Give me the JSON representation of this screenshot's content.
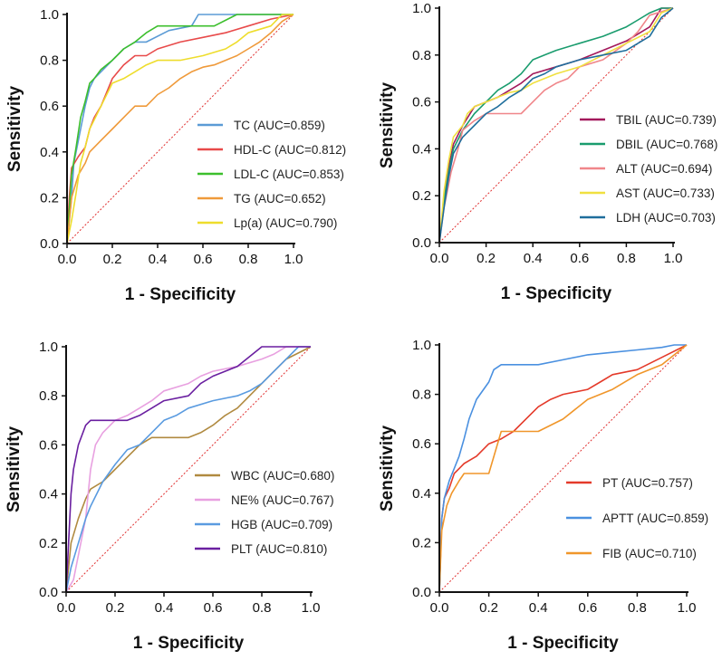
{
  "chart_data": [
    {
      "type": "line",
      "xlabel": "1 - Specificity",
      "ylabel": "Sensitivity",
      "xlim": [
        0,
        1
      ],
      "ylim": [
        0,
        1
      ],
      "xticks": [
        "0.0",
        "0.2",
        "0.4",
        "0.6",
        "0.8",
        "1.0"
      ],
      "yticks": [
        "0.0",
        "0.2",
        "0.4",
        "0.6",
        "0.8",
        "1.0"
      ],
      "reference_line": "diagonal",
      "legend_position": "bottom-right",
      "series": [
        {
          "name": "TC",
          "legend": "TC (AUC=0.859)",
          "color": "#5b9bd5",
          "x": [
            0,
            0.01,
            0.02,
            0.03,
            0.05,
            0.08,
            0.1,
            0.12,
            0.15,
            0.2,
            0.25,
            0.3,
            0.35,
            0.45,
            0.55,
            0.58,
            0.7,
            0.8,
            1.0
          ],
          "y": [
            0,
            0.1,
            0.2,
            0.35,
            0.45,
            0.6,
            0.68,
            0.72,
            0.75,
            0.8,
            0.85,
            0.88,
            0.88,
            0.93,
            0.95,
            1.0,
            1.0,
            1.0,
            1.0
          ]
        },
        {
          "name": "HDL-C",
          "legend": "HDL-C (AUC=0.812)",
          "color": "#e84a4a",
          "x": [
            0,
            0.01,
            0.02,
            0.05,
            0.08,
            0.1,
            0.12,
            0.15,
            0.2,
            0.25,
            0.3,
            0.35,
            0.4,
            0.5,
            0.6,
            0.7,
            0.8,
            0.9,
            1.0
          ],
          "y": [
            0,
            0.2,
            0.33,
            0.38,
            0.42,
            0.5,
            0.55,
            0.6,
            0.72,
            0.78,
            0.82,
            0.82,
            0.85,
            0.88,
            0.9,
            0.92,
            0.95,
            0.98,
            1.0
          ]
        },
        {
          "name": "LDL-C",
          "legend": "LDL-C (AUC=0.853)",
          "color": "#3cbf2c",
          "x": [
            0,
            0.01,
            0.02,
            0.04,
            0.06,
            0.08,
            0.1,
            0.12,
            0.15,
            0.2,
            0.25,
            0.3,
            0.35,
            0.4,
            0.5,
            0.65,
            0.75,
            1.0
          ],
          "y": [
            0,
            0.15,
            0.3,
            0.42,
            0.55,
            0.62,
            0.7,
            0.72,
            0.76,
            0.8,
            0.85,
            0.88,
            0.92,
            0.95,
            0.95,
            0.95,
            1.0,
            1.0
          ]
        },
        {
          "name": "TG",
          "legend": "TG (AUC=0.652)",
          "color": "#ef9a3a",
          "x": [
            0,
            0.02,
            0.05,
            0.08,
            0.1,
            0.15,
            0.2,
            0.25,
            0.3,
            0.35,
            0.4,
            0.45,
            0.5,
            0.55,
            0.6,
            0.65,
            0.7,
            0.75,
            0.8,
            0.85,
            0.9,
            0.95,
            1.0
          ],
          "y": [
            0,
            0.2,
            0.3,
            0.35,
            0.4,
            0.45,
            0.5,
            0.55,
            0.6,
            0.6,
            0.65,
            0.68,
            0.72,
            0.75,
            0.77,
            0.78,
            0.8,
            0.82,
            0.85,
            0.88,
            0.92,
            0.97,
            1.0
          ]
        },
        {
          "name": "Lp(a)",
          "legend": "Lp(a) (AUC=0.790)",
          "color": "#eedd2c",
          "x": [
            0,
            0.02,
            0.04,
            0.06,
            0.08,
            0.1,
            0.15,
            0.2,
            0.25,
            0.3,
            0.35,
            0.4,
            0.5,
            0.6,
            0.7,
            0.75,
            0.8,
            0.9,
            0.95,
            1.0
          ],
          "y": [
            0,
            0.1,
            0.22,
            0.35,
            0.42,
            0.5,
            0.6,
            0.7,
            0.72,
            0.75,
            0.78,
            0.8,
            0.8,
            0.82,
            0.85,
            0.88,
            0.92,
            0.95,
            1.0,
            1.0
          ]
        }
      ]
    },
    {
      "type": "line",
      "xlabel": "1 - Specificity",
      "ylabel": "Sensitivity",
      "xlim": [
        0,
        1
      ],
      "ylim": [
        0,
        1
      ],
      "xticks": [
        "0.0",
        "0.2",
        "0.4",
        "0.6",
        "0.8",
        "1.0"
      ],
      "yticks": [
        "0.0",
        "0.2",
        "0.4",
        "0.6",
        "0.8",
        "1.0"
      ],
      "reference_line": "diagonal",
      "legend_position": "bottom-right",
      "series": [
        {
          "name": "TBIL",
          "legend": "TBIL (AUC=0.739)",
          "color": "#a3195b",
          "x": [
            0,
            0.02,
            0.04,
            0.06,
            0.1,
            0.15,
            0.2,
            0.25,
            0.3,
            0.35,
            0.4,
            0.5,
            0.6,
            0.7,
            0.8,
            0.9,
            0.95,
            1.0
          ],
          "y": [
            0,
            0.2,
            0.32,
            0.42,
            0.5,
            0.58,
            0.6,
            0.62,
            0.65,
            0.68,
            0.72,
            0.75,
            0.78,
            0.82,
            0.86,
            0.92,
            1.0,
            1.0
          ]
        },
        {
          "name": "DBIL",
          "legend": "DBIL (AUC=0.768)",
          "color": "#1a9c6e",
          "x": [
            0,
            0.02,
            0.04,
            0.06,
            0.1,
            0.15,
            0.2,
            0.25,
            0.3,
            0.35,
            0.4,
            0.45,
            0.5,
            0.6,
            0.7,
            0.8,
            0.85,
            0.9,
            0.95,
            1.0
          ],
          "y": [
            0,
            0.18,
            0.3,
            0.4,
            0.48,
            0.55,
            0.6,
            0.65,
            0.68,
            0.72,
            0.78,
            0.8,
            0.82,
            0.85,
            0.88,
            0.92,
            0.95,
            0.98,
            1.0,
            1.0
          ]
        },
        {
          "name": "ALT",
          "legend": "ALT (AUC=0.694)",
          "color": "#f0868a",
          "x": [
            0,
            0.02,
            0.05,
            0.08,
            0.1,
            0.15,
            0.2,
            0.25,
            0.3,
            0.35,
            0.4,
            0.45,
            0.5,
            0.55,
            0.6,
            0.7,
            0.8,
            0.85,
            0.9,
            1.0
          ],
          "y": [
            0,
            0.15,
            0.3,
            0.4,
            0.48,
            0.52,
            0.55,
            0.55,
            0.55,
            0.55,
            0.6,
            0.65,
            0.68,
            0.7,
            0.75,
            0.78,
            0.85,
            0.9,
            0.97,
            1.0
          ]
        },
        {
          "name": "AST",
          "legend": "AST (AUC=0.733)",
          "color": "#f0e040",
          "x": [
            0,
            0.02,
            0.04,
            0.06,
            0.1,
            0.12,
            0.15,
            0.2,
            0.25,
            0.3,
            0.35,
            0.4,
            0.5,
            0.6,
            0.7,
            0.8,
            0.9,
            0.95,
            1.0
          ],
          "y": [
            0,
            0.22,
            0.35,
            0.45,
            0.5,
            0.55,
            0.58,
            0.6,
            0.62,
            0.64,
            0.65,
            0.68,
            0.72,
            0.75,
            0.8,
            0.85,
            0.9,
            0.98,
            1.0
          ]
        },
        {
          "name": "LDH",
          "legend": "LDH (AUC=0.703)",
          "color": "#1f6e9c",
          "x": [
            0,
            0.02,
            0.04,
            0.06,
            0.1,
            0.15,
            0.2,
            0.25,
            0.3,
            0.35,
            0.4,
            0.45,
            0.5,
            0.6,
            0.7,
            0.8,
            0.9,
            0.95,
            1.0
          ],
          "y": [
            0,
            0.15,
            0.28,
            0.38,
            0.45,
            0.5,
            0.55,
            0.58,
            0.62,
            0.65,
            0.7,
            0.72,
            0.75,
            0.78,
            0.8,
            0.82,
            0.88,
            0.96,
            1.0
          ]
        }
      ]
    },
    {
      "type": "line",
      "xlabel": "1 - Specificity",
      "ylabel": "Sensitivity",
      "xlim": [
        0,
        1
      ],
      "ylim": [
        0,
        1
      ],
      "xticks": [
        "0.0",
        "0.2",
        "0.4",
        "0.6",
        "0.8",
        "1.0"
      ],
      "yticks": [
        "0.0",
        "0.2",
        "0.4",
        "0.6",
        "0.8",
        "1.0"
      ],
      "reference_line": "diagonal",
      "legend_position": "bottom-right",
      "series": [
        {
          "name": "WBC",
          "legend": "WBC (AUC=0.680)",
          "color": "#b08a40",
          "x": [
            0,
            0.02,
            0.05,
            0.08,
            0.1,
            0.15,
            0.2,
            0.25,
            0.3,
            0.35,
            0.4,
            0.45,
            0.5,
            0.55,
            0.6,
            0.65,
            0.7,
            0.75,
            0.8,
            0.85,
            0.9,
            1.0
          ],
          "y": [
            0,
            0.2,
            0.3,
            0.38,
            0.42,
            0.45,
            0.5,
            0.55,
            0.6,
            0.63,
            0.63,
            0.63,
            0.63,
            0.65,
            0.68,
            0.72,
            0.75,
            0.8,
            0.85,
            0.9,
            0.95,
            1.0
          ]
        },
        {
          "name": "NE%",
          "legend": "NE% (AUC=0.767)",
          "color": "#e8a0e0",
          "x": [
            0,
            0.03,
            0.05,
            0.08,
            0.1,
            0.12,
            0.15,
            0.2,
            0.25,
            0.3,
            0.35,
            0.4,
            0.5,
            0.55,
            0.6,
            0.7,
            0.8,
            0.85,
            0.9,
            1.0
          ],
          "y": [
            0,
            0.05,
            0.15,
            0.3,
            0.5,
            0.6,
            0.65,
            0.7,
            0.72,
            0.75,
            0.78,
            0.82,
            0.85,
            0.88,
            0.9,
            0.92,
            0.95,
            0.97,
            1.0,
            1.0
          ]
        },
        {
          "name": "HGB",
          "legend": "HGB (AUC=0.709)",
          "color": "#5a9be0",
          "x": [
            0,
            0.02,
            0.05,
            0.08,
            0.1,
            0.15,
            0.2,
            0.25,
            0.3,
            0.35,
            0.4,
            0.45,
            0.5,
            0.6,
            0.7,
            0.75,
            0.8,
            0.85,
            0.9,
            0.95,
            1.0
          ],
          "y": [
            0,
            0.1,
            0.2,
            0.3,
            0.35,
            0.45,
            0.52,
            0.58,
            0.6,
            0.65,
            0.7,
            0.72,
            0.75,
            0.78,
            0.8,
            0.82,
            0.85,
            0.9,
            0.95,
            1.0,
            1.0
          ]
        },
        {
          "name": "PLT",
          "legend": "PLT (AUC=0.810)",
          "color": "#6a1fa0",
          "x": [
            0,
            0.01,
            0.02,
            0.03,
            0.05,
            0.08,
            0.1,
            0.15,
            0.2,
            0.25,
            0.3,
            0.35,
            0.4,
            0.5,
            0.55,
            0.6,
            0.65,
            0.7,
            0.8,
            0.9,
            1.0
          ],
          "y": [
            0,
            0.2,
            0.4,
            0.5,
            0.6,
            0.68,
            0.7,
            0.7,
            0.7,
            0.7,
            0.72,
            0.75,
            0.78,
            0.8,
            0.85,
            0.88,
            0.9,
            0.92,
            1.0,
            1.0,
            1.0
          ]
        }
      ]
    },
    {
      "type": "line",
      "xlabel": "1 - Specificity",
      "ylabel": "Sensitivity",
      "xlim": [
        0,
        1
      ],
      "ylim": [
        0,
        1
      ],
      "xticks": [
        "0.0",
        "0.2",
        "0.4",
        "0.6",
        "0.8",
        "1.0"
      ],
      "yticks": [
        "0.0",
        "0.2",
        "0.4",
        "0.6",
        "0.8",
        "1.0"
      ],
      "reference_line": "diagonal",
      "legend_position": "bottom-right",
      "series": [
        {
          "name": "PT",
          "legend": "PT (AUC=0.757)",
          "color": "#e43a2a",
          "x": [
            0,
            0.01,
            0.02,
            0.04,
            0.06,
            0.1,
            0.15,
            0.2,
            0.25,
            0.3,
            0.35,
            0.4,
            0.45,
            0.5,
            0.6,
            0.65,
            0.7,
            0.8,
            0.9,
            1.0
          ],
          "y": [
            0,
            0.3,
            0.38,
            0.42,
            0.48,
            0.52,
            0.55,
            0.6,
            0.62,
            0.65,
            0.7,
            0.75,
            0.78,
            0.8,
            0.82,
            0.85,
            0.88,
            0.9,
            0.95,
            1.0
          ]
        },
        {
          "name": "APTT",
          "legend": "APTT (AUC=0.859)",
          "color": "#4a90e0",
          "x": [
            0,
            0.01,
            0.02,
            0.04,
            0.06,
            0.08,
            0.1,
            0.12,
            0.15,
            0.2,
            0.22,
            0.25,
            0.3,
            0.4,
            0.5,
            0.6,
            0.7,
            0.8,
            0.9,
            0.95,
            1.0
          ],
          "y": [
            0,
            0.3,
            0.38,
            0.45,
            0.5,
            0.55,
            0.62,
            0.7,
            0.78,
            0.85,
            0.9,
            0.92,
            0.92,
            0.92,
            0.94,
            0.96,
            0.97,
            0.98,
            0.99,
            1.0,
            1.0
          ]
        },
        {
          "name": "FIB",
          "legend": "FIB (AUC=0.710)",
          "color": "#f0962a",
          "x": [
            0,
            0.01,
            0.03,
            0.05,
            0.08,
            0.1,
            0.15,
            0.2,
            0.25,
            0.3,
            0.35,
            0.4,
            0.5,
            0.6,
            0.7,
            0.8,
            0.9,
            1.0
          ],
          "y": [
            0,
            0.25,
            0.35,
            0.4,
            0.45,
            0.48,
            0.48,
            0.48,
            0.65,
            0.65,
            0.65,
            0.65,
            0.7,
            0.78,
            0.82,
            0.88,
            0.92,
            1.0
          ]
        }
      ]
    }
  ]
}
